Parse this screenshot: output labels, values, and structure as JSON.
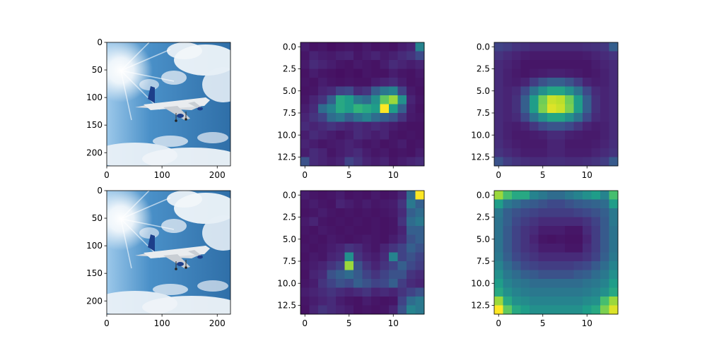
{
  "figure": {
    "rows": 2,
    "cols": 3,
    "background": "#ffffff"
  },
  "colormap": "viridis",
  "chart_data": [
    {
      "panel": "row1-col1",
      "type": "image",
      "image": "airplane-photo",
      "xlim": [
        0,
        224
      ],
      "ylim": [
        224,
        0
      ],
      "xticks": [
        0,
        100,
        200
      ],
      "xtick_labels": [
        "0",
        "100",
        "200"
      ],
      "yticks": [
        0,
        50,
        100,
        150,
        200
      ],
      "ytick_labels": [
        "0",
        "50",
        "100",
        "150",
        "200"
      ]
    },
    {
      "panel": "row1-col2",
      "type": "heatmap",
      "xlim": [
        -0.5,
        13.5
      ],
      "ylim": [
        13.5,
        -0.5
      ],
      "xticks": [
        0,
        5,
        10
      ],
      "xtick_labels": [
        "0",
        "5",
        "10"
      ],
      "yticks": [
        0,
        2.5,
        5,
        7.5,
        10,
        12.5
      ],
      "ytick_labels": [
        "0.0",
        "2.5",
        "5.0",
        "7.5",
        "10.0",
        "12.5"
      ],
      "values": [
        [
          0.08,
          0.05,
          0.06,
          0.04,
          0.05,
          0.06,
          0.05,
          0.07,
          0.05,
          0.06,
          0.05,
          0.08,
          0.1,
          0.45
        ],
        [
          0.06,
          0.1,
          0.08,
          0.07,
          0.09,
          0.1,
          0.06,
          0.08,
          0.1,
          0.07,
          0.09,
          0.12,
          0.15,
          0.22
        ],
        [
          0.07,
          0.12,
          0.1,
          0.08,
          0.06,
          0.05,
          0.07,
          0.06,
          0.05,
          0.08,
          0.12,
          0.1,
          0.08,
          0.1
        ],
        [
          0.05,
          0.08,
          0.06,
          0.05,
          0.04,
          0.05,
          0.04,
          0.06,
          0.05,
          0.05,
          0.08,
          0.06,
          0.05,
          0.07
        ],
        [
          0.06,
          0.05,
          0.08,
          0.06,
          0.05,
          0.06,
          0.05,
          0.05,
          0.08,
          0.1,
          0.12,
          0.08,
          0.05,
          0.06
        ],
        [
          0.05,
          0.06,
          0.1,
          0.12,
          0.2,
          0.22,
          0.12,
          0.15,
          0.3,
          0.4,
          0.45,
          0.2,
          0.07,
          0.05
        ],
        [
          0.06,
          0.1,
          0.15,
          0.3,
          0.6,
          0.55,
          0.4,
          0.35,
          0.5,
          0.75,
          0.85,
          0.5,
          0.1,
          0.06
        ],
        [
          0.08,
          0.12,
          0.35,
          0.45,
          0.6,
          0.55,
          0.65,
          0.6,
          0.55,
          1.0,
          0.55,
          0.3,
          0.08,
          0.05
        ],
        [
          0.1,
          0.15,
          0.2,
          0.35,
          0.4,
          0.3,
          0.38,
          0.45,
          0.35,
          0.3,
          0.25,
          0.15,
          0.07,
          0.06
        ],
        [
          0.12,
          0.1,
          0.12,
          0.15,
          0.12,
          0.1,
          0.12,
          0.1,
          0.12,
          0.1,
          0.08,
          0.06,
          0.05,
          0.05
        ],
        [
          0.08,
          0.12,
          0.1,
          0.08,
          0.06,
          0.08,
          0.12,
          0.1,
          0.08,
          0.1,
          0.06,
          0.05,
          0.06,
          0.05
        ],
        [
          0.1,
          0.08,
          0.06,
          0.07,
          0.08,
          0.1,
          0.08,
          0.06,
          0.07,
          0.05,
          0.06,
          0.08,
          0.05,
          0.06
        ],
        [
          0.08,
          0.12,
          0.1,
          0.06,
          0.08,
          0.1,
          0.12,
          0.08,
          0.06,
          0.07,
          0.05,
          0.06,
          0.05,
          0.08
        ],
        [
          0.25,
          0.12,
          0.1,
          0.08,
          0.1,
          0.2,
          0.15,
          0.1,
          0.08,
          0.1,
          0.06,
          0.08,
          0.1,
          0.12
        ]
      ]
    },
    {
      "panel": "row1-col3",
      "type": "heatmap",
      "xlim": [
        -0.5,
        13.5
      ],
      "ylim": [
        13.5,
        -0.5
      ],
      "xticks": [
        0,
        5,
        10
      ],
      "xtick_labels": [
        "0",
        "5",
        "10"
      ],
      "yticks": [
        0,
        2.5,
        5,
        7.5,
        10,
        12.5
      ],
      "ytick_labels": [
        "0.0",
        "2.5",
        "5.0",
        "7.5",
        "10.0",
        "12.5"
      ],
      "values": [
        [
          0.2,
          0.18,
          0.15,
          0.14,
          0.12,
          0.12,
          0.12,
          0.12,
          0.12,
          0.12,
          0.13,
          0.14,
          0.16,
          0.3
        ],
        [
          0.15,
          0.12,
          0.1,
          0.08,
          0.07,
          0.07,
          0.07,
          0.07,
          0.07,
          0.07,
          0.08,
          0.1,
          0.12,
          0.15
        ],
        [
          0.12,
          0.1,
          0.08,
          0.06,
          0.06,
          0.06,
          0.06,
          0.06,
          0.06,
          0.06,
          0.06,
          0.08,
          0.1,
          0.12
        ],
        [
          0.12,
          0.09,
          0.07,
          0.06,
          0.07,
          0.08,
          0.09,
          0.09,
          0.08,
          0.07,
          0.06,
          0.07,
          0.09,
          0.12
        ],
        [
          0.12,
          0.09,
          0.08,
          0.1,
          0.18,
          0.25,
          0.3,
          0.3,
          0.25,
          0.18,
          0.1,
          0.08,
          0.09,
          0.12
        ],
        [
          0.12,
          0.1,
          0.12,
          0.22,
          0.38,
          0.5,
          0.58,
          0.58,
          0.5,
          0.38,
          0.22,
          0.12,
          0.1,
          0.12
        ],
        [
          0.12,
          0.1,
          0.14,
          0.3,
          0.55,
          0.78,
          0.92,
          0.9,
          0.78,
          0.55,
          0.3,
          0.14,
          0.1,
          0.12
        ],
        [
          0.12,
          0.1,
          0.14,
          0.3,
          0.55,
          0.8,
          0.95,
          0.92,
          0.8,
          0.55,
          0.3,
          0.14,
          0.1,
          0.12
        ],
        [
          0.12,
          0.1,
          0.12,
          0.22,
          0.38,
          0.5,
          0.58,
          0.58,
          0.5,
          0.38,
          0.22,
          0.12,
          0.1,
          0.12
        ],
        [
          0.12,
          0.09,
          0.08,
          0.1,
          0.16,
          0.22,
          0.26,
          0.26,
          0.22,
          0.16,
          0.1,
          0.08,
          0.09,
          0.12
        ],
        [
          0.12,
          0.09,
          0.07,
          0.07,
          0.08,
          0.09,
          0.12,
          0.12,
          0.09,
          0.08,
          0.07,
          0.07,
          0.09,
          0.12
        ],
        [
          0.13,
          0.1,
          0.08,
          0.07,
          0.07,
          0.07,
          0.1,
          0.1,
          0.07,
          0.07,
          0.07,
          0.08,
          0.1,
          0.13
        ],
        [
          0.15,
          0.12,
          0.1,
          0.08,
          0.08,
          0.08,
          0.1,
          0.1,
          0.08,
          0.08,
          0.08,
          0.1,
          0.12,
          0.15
        ],
        [
          0.25,
          0.18,
          0.15,
          0.13,
          0.12,
          0.12,
          0.13,
          0.13,
          0.12,
          0.12,
          0.13,
          0.15,
          0.18,
          0.28
        ]
      ]
    },
    {
      "panel": "row2-col1",
      "type": "image",
      "image": "airplane-photo",
      "xlim": [
        0,
        224
      ],
      "ylim": [
        224,
        0
      ],
      "xticks": [
        0,
        100,
        200
      ],
      "xtick_labels": [
        "0",
        "100",
        "200"
      ],
      "yticks": [
        0,
        50,
        100,
        150,
        200
      ],
      "ytick_labels": [
        "0",
        "50",
        "100",
        "150",
        "200"
      ]
    },
    {
      "panel": "row2-col2",
      "type": "heatmap",
      "xlim": [
        -0.5,
        13.5
      ],
      "ylim": [
        13.5,
        -0.5
      ],
      "xticks": [
        0,
        5,
        10
      ],
      "xtick_labels": [
        "0",
        "5",
        "10"
      ],
      "yticks": [
        0,
        2.5,
        5,
        7.5,
        10,
        12.5
      ],
      "ytick_labels": [
        "0.0",
        "2.5",
        "5.0",
        "7.5",
        "10.0",
        "12.5"
      ],
      "values": [
        [
          0.08,
          0.06,
          0.05,
          0.06,
          0.08,
          0.05,
          0.06,
          0.05,
          0.07,
          0.05,
          0.06,
          0.1,
          0.35,
          1.0
        ],
        [
          0.06,
          0.08,
          0.06,
          0.05,
          0.1,
          0.08,
          0.06,
          0.08,
          0.06,
          0.07,
          0.08,
          0.15,
          0.4,
          0.3
        ],
        [
          0.05,
          0.06,
          0.08,
          0.06,
          0.05,
          0.06,
          0.05,
          0.06,
          0.05,
          0.06,
          0.07,
          0.12,
          0.3,
          0.35
        ],
        [
          0.07,
          0.1,
          0.06,
          0.05,
          0.06,
          0.05,
          0.06,
          0.05,
          0.06,
          0.05,
          0.06,
          0.15,
          0.35,
          0.4
        ],
        [
          0.06,
          0.05,
          0.07,
          0.06,
          0.05,
          0.06,
          0.05,
          0.05,
          0.06,
          0.05,
          0.06,
          0.1,
          0.3,
          0.3
        ],
        [
          0.05,
          0.06,
          0.05,
          0.07,
          0.06,
          0.05,
          0.06,
          0.07,
          0.06,
          0.05,
          0.08,
          0.12,
          0.25,
          0.3
        ],
        [
          0.06,
          0.05,
          0.06,
          0.08,
          0.1,
          0.15,
          0.12,
          0.08,
          0.06,
          0.1,
          0.15,
          0.2,
          0.3,
          0.25
        ],
        [
          0.05,
          0.07,
          0.06,
          0.1,
          0.12,
          0.5,
          0.15,
          0.1,
          0.08,
          0.12,
          0.45,
          0.2,
          0.25,
          0.2
        ],
        [
          0.06,
          0.08,
          0.1,
          0.15,
          0.2,
          0.85,
          0.25,
          0.15,
          0.1,
          0.15,
          0.2,
          0.3,
          0.22,
          0.18
        ],
        [
          0.05,
          0.1,
          0.12,
          0.25,
          0.3,
          0.35,
          0.28,
          0.2,
          0.15,
          0.2,
          0.25,
          0.25,
          0.15,
          0.12
        ],
        [
          0.06,
          0.08,
          0.15,
          0.2,
          0.25,
          0.22,
          0.3,
          0.25,
          0.2,
          0.22,
          0.3,
          0.18,
          0.12,
          0.1
        ],
        [
          0.08,
          0.1,
          0.12,
          0.15,
          0.12,
          0.1,
          0.12,
          0.15,
          0.1,
          0.12,
          0.1,
          0.15,
          0.2,
          0.25
        ],
        [
          0.06,
          0.08,
          0.1,
          0.12,
          0.08,
          0.06,
          0.05,
          0.08,
          0.06,
          0.05,
          0.06,
          0.2,
          0.35,
          0.4
        ],
        [
          0.05,
          0.1,
          0.15,
          0.12,
          0.1,
          0.08,
          0.05,
          0.06,
          0.05,
          0.06,
          0.1,
          0.25,
          0.45,
          0.4
        ]
      ]
    },
    {
      "panel": "row2-col3",
      "type": "heatmap",
      "xlim": [
        -0.5,
        13.5
      ],
      "ylim": [
        13.5,
        -0.5
      ],
      "xticks": [
        0,
        5,
        10
      ],
      "xtick_labels": [
        "0",
        "5",
        "10"
      ],
      "yticks": [
        0,
        2.5,
        5,
        7.5,
        10,
        12.5
      ],
      "ytick_labels": [
        "0.0",
        "2.5",
        "5.0",
        "7.5",
        "10.0",
        "12.5"
      ],
      "values": [
        [
          0.85,
          0.7,
          0.6,
          0.6,
          0.45,
          0.4,
          0.35,
          0.35,
          0.4,
          0.45,
          0.5,
          0.55,
          0.45,
          0.7
        ],
        [
          0.55,
          0.4,
          0.35,
          0.3,
          0.28,
          0.25,
          0.22,
          0.22,
          0.25,
          0.28,
          0.3,
          0.32,
          0.35,
          0.55
        ],
        [
          0.4,
          0.3,
          0.25,
          0.22,
          0.2,
          0.18,
          0.18,
          0.18,
          0.18,
          0.2,
          0.22,
          0.25,
          0.3,
          0.4
        ],
        [
          0.38,
          0.3,
          0.22,
          0.18,
          0.15,
          0.12,
          0.12,
          0.12,
          0.12,
          0.12,
          0.15,
          0.2,
          0.28,
          0.4
        ],
        [
          0.38,
          0.28,
          0.2,
          0.15,
          0.12,
          0.08,
          0.08,
          0.08,
          0.06,
          0.06,
          0.12,
          0.18,
          0.28,
          0.38
        ],
        [
          0.38,
          0.28,
          0.2,
          0.15,
          0.1,
          0.06,
          0.05,
          0.06,
          0.05,
          0.05,
          0.1,
          0.18,
          0.28,
          0.38
        ],
        [
          0.38,
          0.28,
          0.2,
          0.15,
          0.12,
          0.08,
          0.08,
          0.08,
          0.06,
          0.06,
          0.12,
          0.18,
          0.28,
          0.38
        ],
        [
          0.4,
          0.3,
          0.22,
          0.18,
          0.15,
          0.12,
          0.12,
          0.12,
          0.12,
          0.12,
          0.15,
          0.2,
          0.3,
          0.4
        ],
        [
          0.45,
          0.35,
          0.28,
          0.22,
          0.2,
          0.18,
          0.18,
          0.18,
          0.18,
          0.2,
          0.22,
          0.28,
          0.35,
          0.45
        ],
        [
          0.5,
          0.4,
          0.35,
          0.3,
          0.28,
          0.25,
          0.25,
          0.25,
          0.25,
          0.28,
          0.3,
          0.35,
          0.4,
          0.5
        ],
        [
          0.55,
          0.45,
          0.4,
          0.38,
          0.35,
          0.35,
          0.35,
          0.35,
          0.35,
          0.35,
          0.38,
          0.4,
          0.45,
          0.55
        ],
        [
          0.6,
          0.5,
          0.45,
          0.42,
          0.4,
          0.4,
          0.4,
          0.4,
          0.4,
          0.4,
          0.42,
          0.45,
          0.5,
          0.6
        ],
        [
          0.85,
          0.6,
          0.5,
          0.48,
          0.45,
          0.45,
          0.45,
          0.45,
          0.45,
          0.45,
          0.48,
          0.5,
          0.7,
          0.85
        ],
        [
          1.0,
          0.75,
          0.6,
          0.55,
          0.5,
          0.5,
          0.5,
          0.5,
          0.5,
          0.5,
          0.55,
          0.6,
          0.8,
          0.95
        ]
      ]
    }
  ]
}
